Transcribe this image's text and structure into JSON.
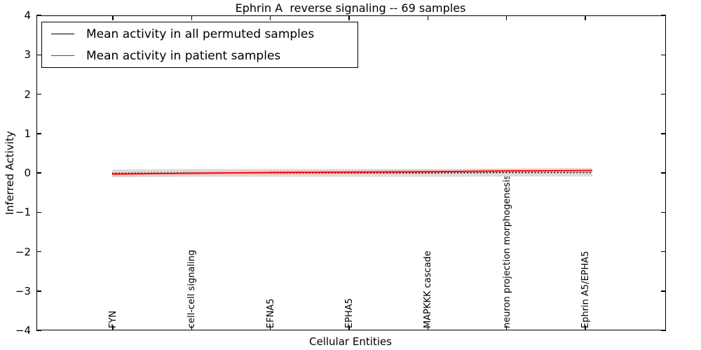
{
  "figure": {
    "title": "Ephrin A  reverse signaling -- 69 samples",
    "xlabel": "Cellular Entities",
    "ylabel": "Inferred Activity"
  },
  "legend": {
    "position": "upper left",
    "items": [
      {
        "label": "Mean activity in all permuted samples",
        "color": "#000000"
      },
      {
        "label": "Mean activity in patient samples",
        "color": "#ff0000"
      }
    ]
  },
  "chart_data": {
    "type": "line",
    "title": "Ephrin A  reverse signaling -- 69 samples",
    "xlabel": "Cellular Entities",
    "ylabel": "Inferred Activity",
    "ylim": [
      -4,
      4
    ],
    "yticks": [
      4,
      3,
      2,
      1,
      0,
      -1,
      -2,
      -3,
      -4
    ],
    "ytick_labels": [
      "4",
      "3",
      "2",
      "1",
      "0",
      "−1",
      "−2",
      "−3",
      "−4"
    ],
    "categories": [
      "FYN",
      "cell-cell signaling",
      "EFNA5",
      "EPHA5",
      "MAPKKK cascade",
      "neuron projection morphogenesis",
      "Ephrin A5/EPHA5"
    ],
    "series": [
      {
        "name": "Mean activity in all permuted samples",
        "color": "#000000",
        "line_style": "dotted",
        "values": [
          -0.01,
          0.0,
          0.0,
          0.0,
          0.0,
          0.01,
          0.01
        ]
      },
      {
        "name": "Mean activity in patient samples",
        "color": "#ff0000",
        "line_style": "solid",
        "values": [
          -0.03,
          -0.01,
          0.01,
          0.02,
          0.03,
          0.05,
          0.06
        ]
      }
    ],
    "band": {
      "description": "shaded std-dev band around mean lines",
      "permuted_halfwidth": 0.1,
      "permuted_color": "#dcdcdc",
      "patient_halfwidth": 0.06,
      "patient_color": "#f5c0c0"
    },
    "legend_position": "upper left",
    "grid": false
  }
}
